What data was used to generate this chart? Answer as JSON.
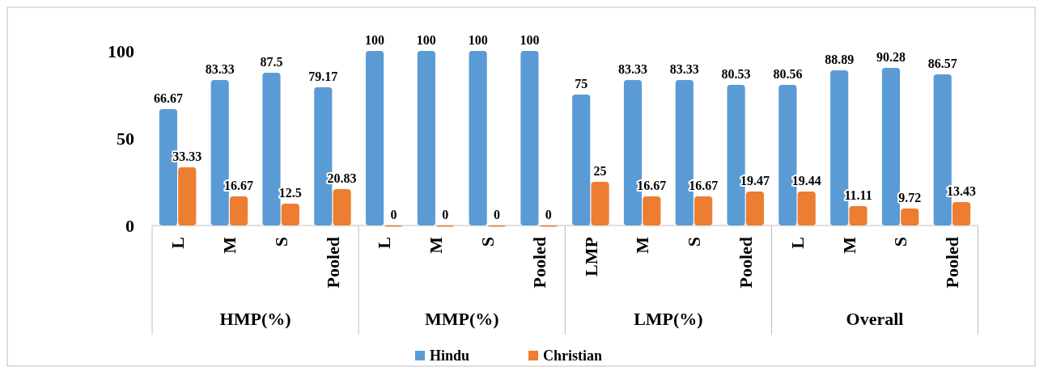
{
  "chart_data": {
    "type": "bar",
    "categories": [
      "L",
      "M",
      "S",
      "Pooled",
      "L",
      "M",
      "S",
      "Pooled",
      "LMP",
      "M",
      "S",
      "Pooled",
      "L",
      "M",
      "S",
      "Pooled"
    ],
    "series": [
      {
        "name": "Hindu",
        "color": "#5b9bd5",
        "values": [
          66.67,
          83.33,
          87.5,
          79.17,
          100,
          100,
          100,
          100,
          75,
          83.33,
          83.33,
          80.53,
          80.56,
          88.89,
          90.28,
          86.57
        ]
      },
      {
        "name": "Christian",
        "color": "#ed7d31",
        "values": [
          33.33,
          16.67,
          12.5,
          20.83,
          0,
          0,
          0,
          0,
          25,
          16.67,
          16.67,
          19.47,
          19.44,
          11.11,
          9.72,
          13.43
        ]
      }
    ],
    "annotations": [
      "HMP(%)",
      "MMP(%)",
      "LMP(%)",
      "Overall"
    ],
    "ylim": [
      0,
      100
    ],
    "yticks": [
      0,
      50,
      100
    ],
    "data_labels": true,
    "legend": "bottom",
    "grid": false
  }
}
